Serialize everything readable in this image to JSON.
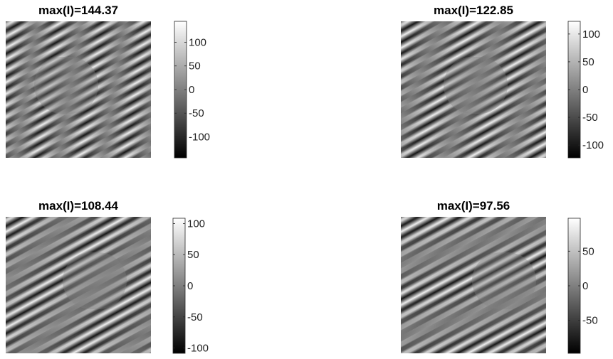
{
  "chart_data": [
    {
      "type": "heatmap",
      "title": "max(I)=144.37",
      "clim": [
        -144.37,
        144.37
      ],
      "cticks": [
        -100,
        -50,
        0,
        50,
        100
      ],
      "colormap": "gray"
    },
    {
      "type": "heatmap",
      "title": "max(I)=122.85",
      "clim": [
        -122.85,
        122.85
      ],
      "cticks": [
        -100,
        -50,
        0,
        50,
        100
      ],
      "colormap": "gray"
    },
    {
      "type": "heatmap",
      "title": "max(I)=108.44",
      "clim": [
        -108.44,
        108.44
      ],
      "cticks": [
        -100,
        -50,
        0,
        50,
        100
      ],
      "colormap": "gray"
    },
    {
      "type": "heatmap",
      "title": "max(I)=97.56",
      "clim": [
        -97.56,
        97.56
      ],
      "cticks": [
        -50,
        0,
        50
      ],
      "colormap": "gray"
    }
  ]
}
